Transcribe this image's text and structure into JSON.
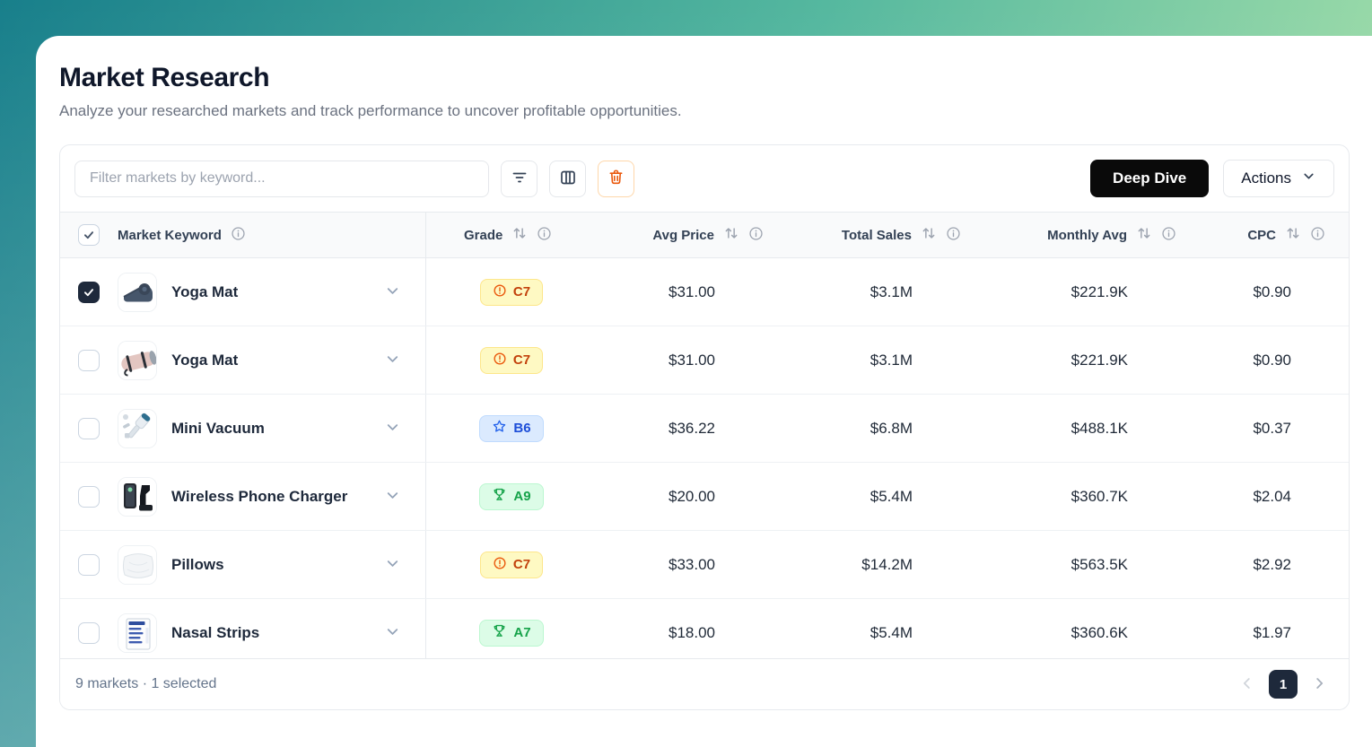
{
  "page": {
    "title": "Market Research",
    "subtitle": "Analyze your researched markets and track performance to uncover profitable opportunities."
  },
  "toolbar": {
    "filter_placeholder": "Filter markets by keyword...",
    "filter_icon": "filter-lines-icon",
    "columns_icon": "columns-icon",
    "delete_icon": "trash-icon",
    "deep_dive_label": "Deep Dive",
    "actions_label": "Actions"
  },
  "table": {
    "columns": [
      {
        "label": "Market Keyword",
        "has_sort": false,
        "has_info": true
      },
      {
        "label": "Grade",
        "has_sort": true,
        "has_info": true
      },
      {
        "label": "Avg Price",
        "has_sort": true,
        "has_info": true
      },
      {
        "label": "Total Sales",
        "has_sort": true,
        "has_info": true
      },
      {
        "label": "Monthly Avg",
        "has_sort": true,
        "has_info": true
      },
      {
        "label": "CPC",
        "has_sort": true,
        "has_info": true
      }
    ],
    "header_checkbox_state": "partial",
    "rows": [
      {
        "keyword": "Yoga Mat",
        "selected": true,
        "thumb": "yoga-mat-dark",
        "grade": "C7",
        "grade_variant": "warning",
        "grade_icon": "alert-circle",
        "avg_price": "$31.00",
        "total_sales": "$3.1M",
        "monthly_avg": "$221.9K",
        "cpc": "$0.90"
      },
      {
        "keyword": "Yoga Mat",
        "selected": false,
        "thumb": "yoga-mat-pink",
        "grade": "C7",
        "grade_variant": "warning",
        "grade_icon": "alert-circle",
        "avg_price": "$31.00",
        "total_sales": "$3.1M",
        "monthly_avg": "$221.9K",
        "cpc": "$0.90"
      },
      {
        "keyword": "Mini Vacuum",
        "selected": false,
        "thumb": "mini-vacuum",
        "grade": "B6",
        "grade_variant": "info",
        "grade_icon": "star",
        "avg_price": "$36.22",
        "total_sales": "$6.8M",
        "monthly_avg": "$488.1K",
        "cpc": "$0.37"
      },
      {
        "keyword": "Wireless Phone Charger",
        "selected": false,
        "thumb": "phone-charger",
        "grade": "A9",
        "grade_variant": "success",
        "grade_icon": "trophy",
        "avg_price": "$20.00",
        "total_sales": "$5.4M",
        "monthly_avg": "$360.7K",
        "cpc": "$2.04"
      },
      {
        "keyword": "Pillows",
        "selected": false,
        "thumb": "pillow",
        "grade": "C7",
        "grade_variant": "warning",
        "grade_icon": "alert-circle",
        "avg_price": "$33.00",
        "total_sales": "$14.2M",
        "monthly_avg": "$563.5K",
        "cpc": "$2.92"
      },
      {
        "keyword": "Nasal Strips",
        "selected": false,
        "thumb": "nasal-strips",
        "grade": "A7",
        "grade_variant": "success",
        "grade_icon": "trophy",
        "avg_price": "$18.00",
        "total_sales": "$5.4M",
        "monthly_avg": "$360.6K",
        "cpc": "$1.97"
      }
    ]
  },
  "footer": {
    "summary": "9 markets · 1 selected",
    "page": "1"
  },
  "colors": {
    "bg_gradient_start": "#187F8B",
    "bg_gradient_end": "#A6E0AA",
    "badge_warning_text": "#C2410C",
    "badge_warning_bg": "#FEF9C3",
    "badge_info_text": "#1D4ED8",
    "badge_info_bg": "#DBEAFE",
    "badge_success_text": "#16A34A",
    "badge_success_bg": "#DCFCE7",
    "danger_accent": "#EA580C",
    "primary_button_bg": "#0A0A0A",
    "selected_checkbox_bg": "#1E293B"
  }
}
